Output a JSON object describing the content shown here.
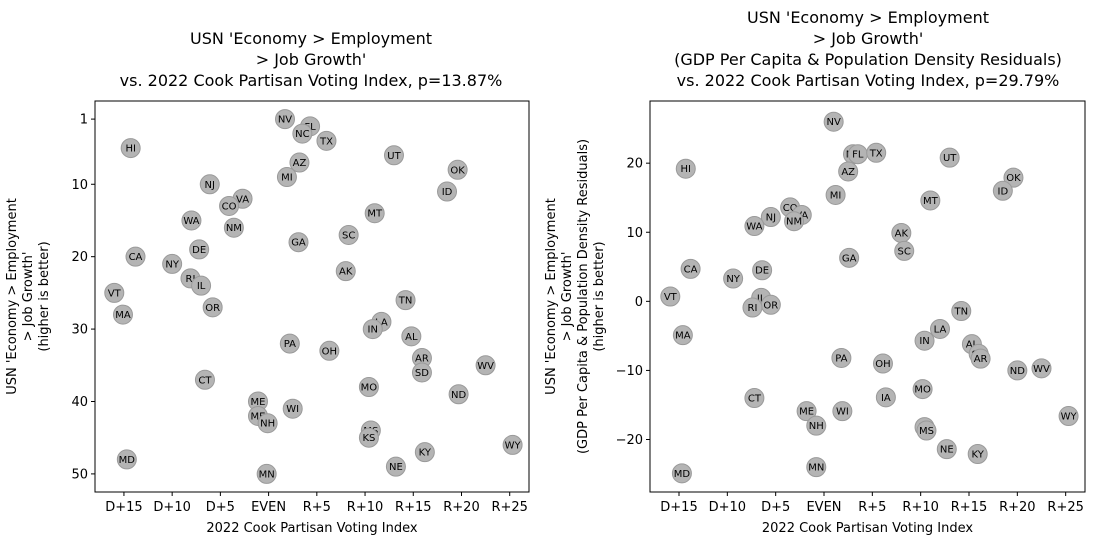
{
  "chart_data": [
    {
      "type": "scatter",
      "title": [
        "USN 'Economy > Employment",
        "> Job Growth'",
        "vs. 2022 Cook Partisan Voting Index, p=13.87%"
      ],
      "xlabel": "2022 Cook Partisan Voting Index",
      "ylabel": [
        "USN 'Economy > Employment",
        "> Job Growth'",
        "(higher is better)"
      ],
      "xlim": [
        -18,
        27
      ],
      "ylim": [
        52.5,
        -1.5
      ],
      "y_inverted": true,
      "xticks": [
        {
          "v": -15,
          "label": "D+15"
        },
        {
          "v": -10,
          "label": "D+10"
        },
        {
          "v": -5,
          "label": "D+5"
        },
        {
          "v": 0,
          "label": "EVEN"
        },
        {
          "v": 5,
          "label": "R+5"
        },
        {
          "v": 10,
          "label": "R+10"
        },
        {
          "v": 15,
          "label": "R+15"
        },
        {
          "v": 20,
          "label": "R+20"
        },
        {
          "v": 25,
          "label": "R+25"
        }
      ],
      "yticks": [
        {
          "v": 1,
          "label": "1"
        },
        {
          "v": 10,
          "label": "10"
        },
        {
          "v": 20,
          "label": "20"
        },
        {
          "v": 30,
          "label": "30"
        },
        {
          "v": 40,
          "label": "40"
        },
        {
          "v": 50,
          "label": "50"
        }
      ],
      "points": [
        {
          "label": "NV",
          "x": 1.7,
          "y": 1
        },
        {
          "label": "FL",
          "x": 4.3,
          "y": 2
        },
        {
          "label": "NC",
          "x": 3.5,
          "y": 3
        },
        {
          "label": "TX",
          "x": 6,
          "y": 4
        },
        {
          "label": "HI",
          "x": -14.3,
          "y": 5
        },
        {
          "label": "UT",
          "x": 13,
          "y": 6
        },
        {
          "label": "AZ",
          "x": 3.2,
          "y": 7
        },
        {
          "label": "OK",
          "x": 19.6,
          "y": 8
        },
        {
          "label": "MI",
          "x": 1.9,
          "y": 9
        },
        {
          "label": "NJ",
          "x": -6.1,
          "y": 10
        },
        {
          "label": "ID",
          "x": 18.5,
          "y": 11
        },
        {
          "label": "VA",
          "x": -2.7,
          "y": 12
        },
        {
          "label": "CO",
          "x": -4.1,
          "y": 13
        },
        {
          "label": "MT",
          "x": 11,
          "y": 14
        },
        {
          "label": "WA",
          "x": -8,
          "y": 15
        },
        {
          "label": "NM",
          "x": -3.6,
          "y": 16
        },
        {
          "label": "SC",
          "x": 8.3,
          "y": 17
        },
        {
          "label": "GA",
          "x": 3.1,
          "y": 18
        },
        {
          "label": "DE",
          "x": -7.2,
          "y": 19
        },
        {
          "label": "CA",
          "x": -13.8,
          "y": 20
        },
        {
          "label": "NY",
          "x": -10,
          "y": 21
        },
        {
          "label": "AK",
          "x": 8,
          "y": 22
        },
        {
          "label": "RI",
          "x": -8.1,
          "y": 23
        },
        {
          "label": "IL",
          "x": -7,
          "y": 24
        },
        {
          "label": "VT",
          "x": -16,
          "y": 25
        },
        {
          "label": "TN",
          "x": 14.2,
          "y": 26
        },
        {
          "label": "OR",
          "x": -5.8,
          "y": 27
        },
        {
          "label": "MA",
          "x": -15.1,
          "y": 28
        },
        {
          "label": "LA",
          "x": 11.7,
          "y": 29
        },
        {
          "label": "IN",
          "x": 10.8,
          "y": 30
        },
        {
          "label": "AL",
          "x": 14.8,
          "y": 31
        },
        {
          "label": "PA",
          "x": 2.2,
          "y": 32
        },
        {
          "label": "OH",
          "x": 6.3,
          "y": 33
        },
        {
          "label": "AR",
          "x": 15.9,
          "y": 34
        },
        {
          "label": "WV",
          "x": 22.5,
          "y": 35
        },
        {
          "label": "SD",
          "x": 15.9,
          "y": 36
        },
        {
          "label": "CT",
          "x": -6.6,
          "y": 37
        },
        {
          "label": "MO",
          "x": 10.4,
          "y": 38
        },
        {
          "label": "ND",
          "x": 19.7,
          "y": 39
        },
        {
          "label": "ME",
          "x": -1.1,
          "y": 40
        },
        {
          "label": "WI",
          "x": 2.5,
          "y": 41
        },
        {
          "label": "ME",
          "x": -1.1,
          "y": 42
        },
        {
          "label": "NH",
          "x": -0.1,
          "y": 43
        },
        {
          "label": "MS",
          "x": 10.6,
          "y": 44
        },
        {
          "label": "KS",
          "x": 10.4,
          "y": 45
        },
        {
          "label": "WY",
          "x": 25.3,
          "y": 46
        },
        {
          "label": "KY",
          "x": 16.2,
          "y": 47
        },
        {
          "label": "MD",
          "x": -14.7,
          "y": 48
        },
        {
          "label": "NE",
          "x": 13.2,
          "y": 49
        },
        {
          "label": "MN",
          "x": -0.2,
          "y": 50
        }
      ]
    },
    {
      "type": "scatter",
      "title": [
        "USN 'Economy > Employment",
        "> Job Growth'",
        "(GDP Per Capita & Population Density Residuals)",
        "vs. 2022 Cook Partisan Voting Index, p=29.79%"
      ],
      "xlabel": "2022 Cook Partisan Voting Index",
      "ylabel": [
        "USN 'Economy > Employment",
        "> Job Growth'",
        "(GDP Per Capita & Population Density Residuals)",
        "(higher is better)"
      ],
      "xlim": [
        -18,
        27
      ],
      "ylim": [
        -27.6,
        29
      ],
      "y_inverted": false,
      "xticks": [
        {
          "v": -15,
          "label": "D+15"
        },
        {
          "v": -10,
          "label": "D+10"
        },
        {
          "v": -5,
          "label": "D+5"
        },
        {
          "v": 0,
          "label": "EVEN"
        },
        {
          "v": 5,
          "label": "R+5"
        },
        {
          "v": 10,
          "label": "R+10"
        },
        {
          "v": 15,
          "label": "R+15"
        },
        {
          "v": 20,
          "label": "R+20"
        },
        {
          "v": 25,
          "label": "R+25"
        }
      ],
      "yticks": [
        {
          "v": -20,
          "label": "−20"
        },
        {
          "v": -10,
          "label": "−10"
        },
        {
          "v": 0,
          "label": "0"
        },
        {
          "v": 10,
          "label": "10"
        },
        {
          "v": 20,
          "label": "20"
        }
      ],
      "points": [
        {
          "label": "NV",
          "x": 1,
          "y": 26
        },
        {
          "label": "NC",
          "x": 3,
          "y": 21.3
        },
        {
          "label": "FL",
          "x": 3.5,
          "y": 21.3
        },
        {
          "label": "TX",
          "x": 5.4,
          "y": 21.5
        },
        {
          "label": "UT",
          "x": 13,
          "y": 20.8
        },
        {
          "label": "HI",
          "x": -14.3,
          "y": 19.2
        },
        {
          "label": "AZ",
          "x": 2.5,
          "y": 18.8
        },
        {
          "label": "OK",
          "x": 19.6,
          "y": 17.9
        },
        {
          "label": "ID",
          "x": 18.5,
          "y": 16
        },
        {
          "label": "MI",
          "x": 1.2,
          "y": 15.4
        },
        {
          "label": "MT",
          "x": 11,
          "y": 14.6
        },
        {
          "label": "CO",
          "x": -3.5,
          "y": 13.6
        },
        {
          "label": "VA",
          "x": -2.3,
          "y": 12.5
        },
        {
          "label": "NJ",
          "x": -5.5,
          "y": 12.2
        },
        {
          "label": "NM",
          "x": -3.1,
          "y": 11.6
        },
        {
          "label": "WA",
          "x": -7.2,
          "y": 10.9
        },
        {
          "label": "AK",
          "x": 8,
          "y": 9.9
        },
        {
          "label": "SC",
          "x": 8.3,
          "y": 7.3
        },
        {
          "label": "GA",
          "x": 2.6,
          "y": 6.3
        },
        {
          "label": "CA",
          "x": -13.8,
          "y": 4.7
        },
        {
          "label": "DE",
          "x": -6.4,
          "y": 4.5
        },
        {
          "label": "NY",
          "x": -9.4,
          "y": 3.3
        },
        {
          "label": "VT",
          "x": -15.9,
          "y": 0.7
        },
        {
          "label": "IL",
          "x": -6.5,
          "y": 0.5
        },
        {
          "label": "OR",
          "x": -5.5,
          "y": -0.5
        },
        {
          "label": "RI",
          "x": -7.4,
          "y": -0.9
        },
        {
          "label": "TN",
          "x": 14.2,
          "y": -1.4
        },
        {
          "label": "LA",
          "x": 12,
          "y": -4
        },
        {
          "label": "MA",
          "x": -14.6,
          "y": -4.9
        },
        {
          "label": "IN",
          "x": 10.4,
          "y": -5.7
        },
        {
          "label": "AL",
          "x": 15.3,
          "y": -6.2
        },
        {
          "label": "SD",
          "x": 16,
          "y": -7.6
        },
        {
          "label": "PA",
          "x": 1.8,
          "y": -8.2
        },
        {
          "label": "AR",
          "x": 16.2,
          "y": -8.3
        },
        {
          "label": "OH",
          "x": 6.1,
          "y": -9
        },
        {
          "label": "WV",
          "x": 22.5,
          "y": -9.7
        },
        {
          "label": "ND",
          "x": 20,
          "y": -10
        },
        {
          "label": "MO",
          "x": 10.2,
          "y": -12.7
        },
        {
          "label": "CT",
          "x": -7.2,
          "y": -14
        },
        {
          "label": "IA",
          "x": 6.4,
          "y": -13.9
        },
        {
          "label": "ME",
          "x": -1.8,
          "y": -15.9
        },
        {
          "label": "WI",
          "x": 1.9,
          "y": -15.9
        },
        {
          "label": "WY",
          "x": 25.3,
          "y": -16.6
        },
        {
          "label": "NH",
          "x": -0.8,
          "y": -18
        },
        {
          "label": "KS",
          "x": 10.4,
          "y": -18.2
        },
        {
          "label": "MS",
          "x": 10.6,
          "y": -18.7
        },
        {
          "label": "NE",
          "x": 12.7,
          "y": -21.4
        },
        {
          "label": "KY",
          "x": 15.9,
          "y": -22.1
        },
        {
          "label": "MN",
          "x": -0.8,
          "y": -24
        },
        {
          "label": "MD",
          "x": -14.7,
          "y": -24.9
        }
      ]
    }
  ]
}
